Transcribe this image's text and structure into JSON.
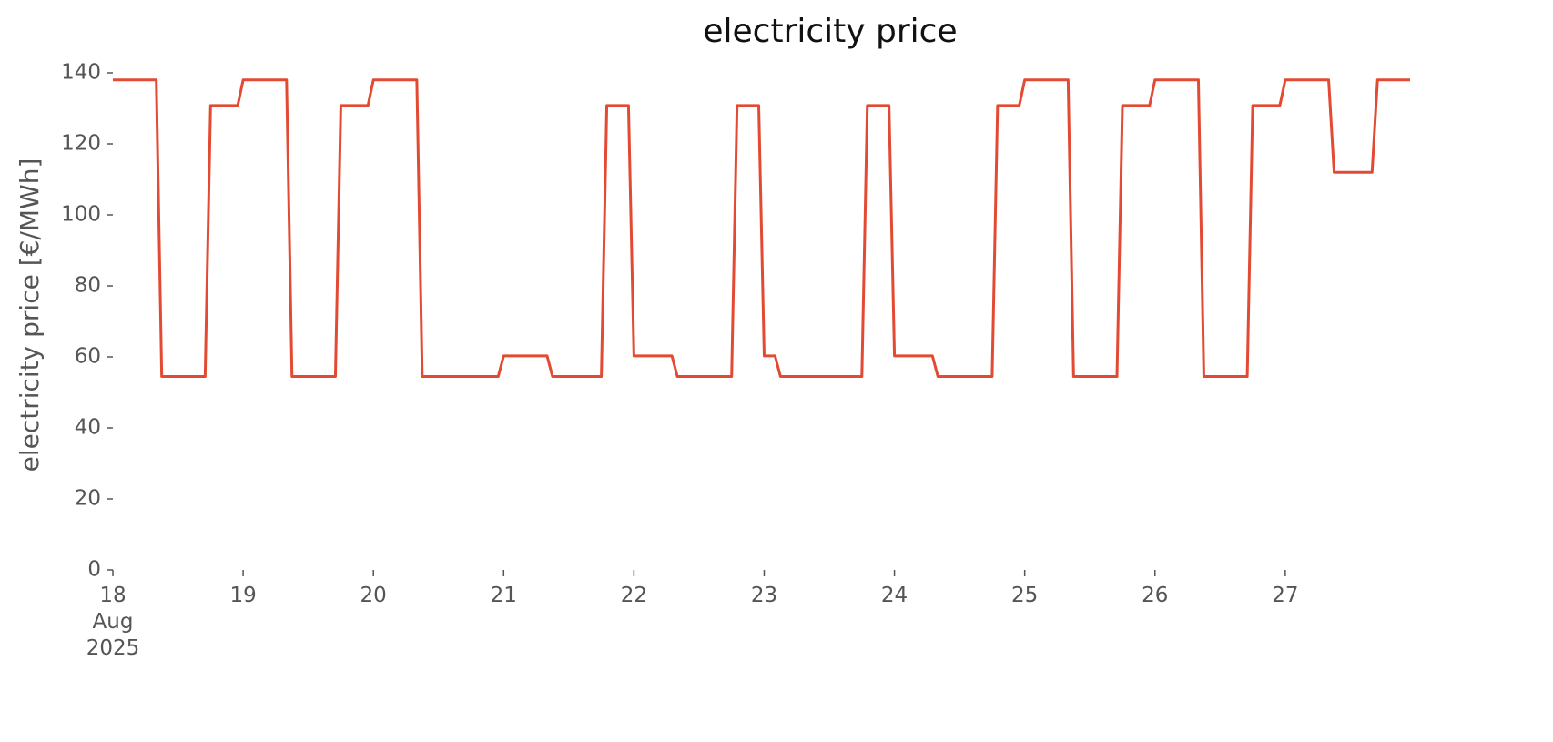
{
  "chart_data": {
    "type": "line",
    "title": "electricity price",
    "y_label": "electricity price [€/MWh]",
    "x": [
      "2025-08-18 00:00",
      "2025-08-18 08:00",
      "2025-08-18 09:00",
      "2025-08-18 17:00",
      "2025-08-18 18:00",
      "2025-08-18 23:00",
      "2025-08-19 00:00",
      "2025-08-19 08:00",
      "2025-08-19 09:00",
      "2025-08-19 17:00",
      "2025-08-19 18:00",
      "2025-08-19 23:00",
      "2025-08-20 00:00",
      "2025-08-20 08:00",
      "2025-08-20 09:00",
      "2025-08-20 23:00",
      "2025-08-21 00:00",
      "2025-08-21 08:00",
      "2025-08-21 09:00",
      "2025-08-21 18:00",
      "2025-08-21 19:00",
      "2025-08-21 23:00",
      "2025-08-22 00:00",
      "2025-08-22 07:00",
      "2025-08-22 08:00",
      "2025-08-22 18:00",
      "2025-08-22 19:00",
      "2025-08-22 23:00",
      "2025-08-23 00:00",
      "2025-08-23 02:00",
      "2025-08-23 03:00",
      "2025-08-23 18:00",
      "2025-08-23 19:00",
      "2025-08-23 23:00",
      "2025-08-24 00:00",
      "2025-08-24 07:00",
      "2025-08-24 08:00",
      "2025-08-24 18:00",
      "2025-08-24 19:00",
      "2025-08-24 23:00",
      "2025-08-25 00:00",
      "2025-08-25 08:00",
      "2025-08-25 09:00",
      "2025-08-25 17:00",
      "2025-08-25 18:00",
      "2025-08-25 23:00",
      "2025-08-26 00:00",
      "2025-08-26 08:00",
      "2025-08-26 09:00",
      "2025-08-26 17:00",
      "2025-08-26 18:00",
      "2025-08-26 23:00",
      "2025-08-27 00:00",
      "2025-08-27 08:00",
      "2025-08-27 09:00",
      "2025-08-27 16:00",
      "2025-08-27 17:00",
      "2025-08-27 23:00"
    ],
    "series": [
      {
        "name": "electricity price",
        "color": "#e24a33",
        "values": [
          138,
          138,
          54.5,
          54.5,
          130.8,
          130.8,
          138,
          138,
          54.5,
          54.5,
          130.8,
          130.8,
          138,
          138,
          54.5,
          54.5,
          60.3,
          60.3,
          54.5,
          54.5,
          130.8,
          130.8,
          60.3,
          60.3,
          54.5,
          54.5,
          130.8,
          130.8,
          60.3,
          60.3,
          54.5,
          54.5,
          130.8,
          130.8,
          60.3,
          60.3,
          54.5,
          54.5,
          130.8,
          130.8,
          138,
          138,
          54.5,
          54.5,
          130.8,
          130.8,
          138,
          138,
          54.5,
          54.5,
          130.8,
          130.8,
          138,
          138,
          112,
          112,
          138,
          138
        ]
      }
    ],
    "xlim": [
      "2025-08-18 00:00",
      "2025-08-27 23:00"
    ],
    "xticks": [
      {
        "value": "2025-08-18 00:00",
        "label": "18\nAug\n2025"
      },
      {
        "value": "2025-08-19 00:00",
        "label": "19"
      },
      {
        "value": "2025-08-20 00:00",
        "label": "20"
      },
      {
        "value": "2025-08-21 00:00",
        "label": "21"
      },
      {
        "value": "2025-08-22 00:00",
        "label": "22"
      },
      {
        "value": "2025-08-23 00:00",
        "label": "23"
      },
      {
        "value": "2025-08-24 00:00",
        "label": "24"
      },
      {
        "value": "2025-08-25 00:00",
        "label": "25"
      },
      {
        "value": "2025-08-26 00:00",
        "label": "26"
      },
      {
        "value": "2025-08-27 00:00",
        "label": "27"
      }
    ],
    "ylim": [
      0,
      140
    ],
    "yticks": [
      0,
      20,
      40,
      60,
      80,
      100,
      120,
      140
    ],
    "grid": false
  }
}
